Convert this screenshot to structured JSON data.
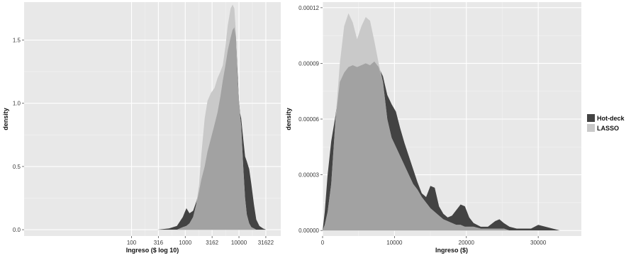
{
  "chart_data": [
    {
      "type": "area",
      "xlabel": "Ingreso ($ log 10)",
      "ylabel": "density",
      "x_scale": "log10",
      "xlim": [
        1,
        60000
      ],
      "ylim": [
        -0.05,
        1.8
      ],
      "x_ticks": [
        100,
        316,
        1000,
        3162,
        10000,
        31622
      ],
      "x_tick_labels": [
        "100",
        "316",
        "1000",
        "3162",
        "10000",
        "31622"
      ],
      "y_ticks": [
        0.0,
        0.5,
        1.0,
        1.5
      ],
      "y_tick_labels": [
        "0.0",
        "0.5",
        "1.0",
        "1.5"
      ],
      "grid": true,
      "x": [
        1,
        100,
        300,
        500,
        700,
        900,
        1050,
        1200,
        1400,
        1600,
        1800,
        2000,
        2300,
        2600,
        3000,
        3500,
        4000,
        4500,
        5000,
        5600,
        6200,
        7000,
        7600,
        8200,
        8800,
        9400,
        10000,
        10500,
        11000,
        12000,
        13000,
        14000,
        15500,
        17000,
        19000,
        21000,
        24000,
        28000,
        32000,
        36000
      ],
      "series": [
        {
          "name": "Hot-deck",
          "color": "#434343",
          "values": [
            0.0,
            0.0,
            0.0,
            0.01,
            0.03,
            0.1,
            0.17,
            0.13,
            0.15,
            0.22,
            0.3,
            0.4,
            0.5,
            0.62,
            0.72,
            0.83,
            0.93,
            1.05,
            1.18,
            1.3,
            1.42,
            1.52,
            1.58,
            1.6,
            1.52,
            1.25,
            1.02,
            0.92,
            0.88,
            0.72,
            0.58,
            0.54,
            0.48,
            0.36,
            0.2,
            0.08,
            0.03,
            0.01,
            0.0,
            0.0
          ]
        },
        {
          "name": "LASSO",
          "color": "#c9c9c9",
          "values": [
            0.0,
            0.0,
            0.0,
            0.0,
            0.0,
            0.02,
            0.03,
            0.05,
            0.1,
            0.2,
            0.35,
            0.6,
            0.88,
            1.02,
            1.08,
            1.12,
            1.2,
            1.25,
            1.3,
            1.45,
            1.62,
            1.75,
            1.78,
            1.75,
            1.55,
            1.2,
            1.02,
            0.9,
            0.82,
            0.5,
            0.25,
            0.12,
            0.05,
            0.02,
            0.01,
            0.0,
            0.0,
            0.0,
            0.0,
            0.0
          ]
        }
      ]
    },
    {
      "type": "area",
      "xlabel": "Ingreso ($)",
      "ylabel": "density",
      "xlim": [
        0,
        36000
      ],
      "ylim": [
        -3e-06,
        0.000123
      ],
      "x_ticks": [
        0,
        10000,
        20000,
        30000
      ],
      "x_tick_labels": [
        "0",
        "10000",
        "20000",
        "30000"
      ],
      "y_ticks": [
        0.0,
        3e-05,
        6e-05,
        9e-05,
        0.00012
      ],
      "y_tick_labels": [
        "0.00000",
        "0.00003",
        "0.00006",
        "0.00009",
        "0.00012"
      ],
      "grid": true,
      "x": [
        0,
        300,
        700,
        1200,
        1800,
        2400,
        3000,
        3600,
        4200,
        4800,
        5400,
        6000,
        6600,
        7200,
        7800,
        8400,
        9000,
        9600,
        10200,
        10800,
        11400,
        12000,
        12600,
        13200,
        13800,
        14400,
        15000,
        15600,
        16200,
        16800,
        17400,
        18000,
        18600,
        19200,
        19800,
        20400,
        21000,
        22000,
        23000,
        24000,
        24600,
        25200,
        26000,
        27000,
        28000,
        29000,
        30000,
        31000,
        32000,
        33000,
        34000,
        35000
      ],
      "series": [
        {
          "name": "Hot-deck",
          "color": "#434343",
          "values": [
            0.0,
            1e-05,
            3e-05,
            4.8e-05,
            6.2e-05,
            8e-05,
            8.5e-05,
            8.8e-05,
            8.9e-05,
            8.8e-05,
            8.9e-05,
            9e-05,
            8.9e-05,
            9.1e-05,
            8.8e-05,
            8.3e-05,
            7.3e-05,
            6.8e-05,
            6.4e-05,
            5.5e-05,
            4.7e-05,
            4e-05,
            3.3e-05,
            2.6e-05,
            2e-05,
            1.8e-05,
            2.4e-05,
            2.3e-05,
            1.3e-05,
            9e-06,
            7e-06,
            8e-06,
            1.1e-05,
            1.4e-05,
            1.3e-05,
            7e-06,
            4e-06,
            2e-06,
            2e-06,
            5e-06,
            6e-06,
            4e-06,
            2e-06,
            1e-06,
            1e-06,
            1e-06,
            3e-06,
            2e-06,
            1e-06,
            0.0,
            0.0,
            0.0
          ]
        },
        {
          "name": "LASSO",
          "color": "#c9c9c9",
          "values": [
            0.0,
            3e-06,
            1e-05,
            2.5e-05,
            6e-05,
            9e-05,
            0.00011,
            0.000117,
            0.000112,
            0.000103,
            0.00011,
            0.000115,
            0.000113,
            0.000102,
            9e-05,
            8e-05,
            6e-05,
            5e-05,
            4.5e-05,
            4e-05,
            3.5e-05,
            3e-05,
            2.5e-05,
            2.2e-05,
            1.8e-05,
            1.5e-05,
            1.2e-05,
            1e-05,
            8e-06,
            6e-06,
            5e-06,
            4e-06,
            3e-06,
            3e-06,
            2e-06,
            2e-06,
            2e-06,
            1e-06,
            1e-06,
            1e-06,
            1e-06,
            1e-06,
            0.0,
            0.0,
            0.0,
            0.0,
            0.0,
            0.0,
            0.0,
            0.0,
            0.0,
            0.0
          ]
        }
      ]
    }
  ],
  "legend": {
    "placement": "right",
    "items": [
      {
        "label": "Hot-deck",
        "color": "#434343"
      },
      {
        "label": "LASSO",
        "color": "#c9c9c9"
      }
    ]
  }
}
